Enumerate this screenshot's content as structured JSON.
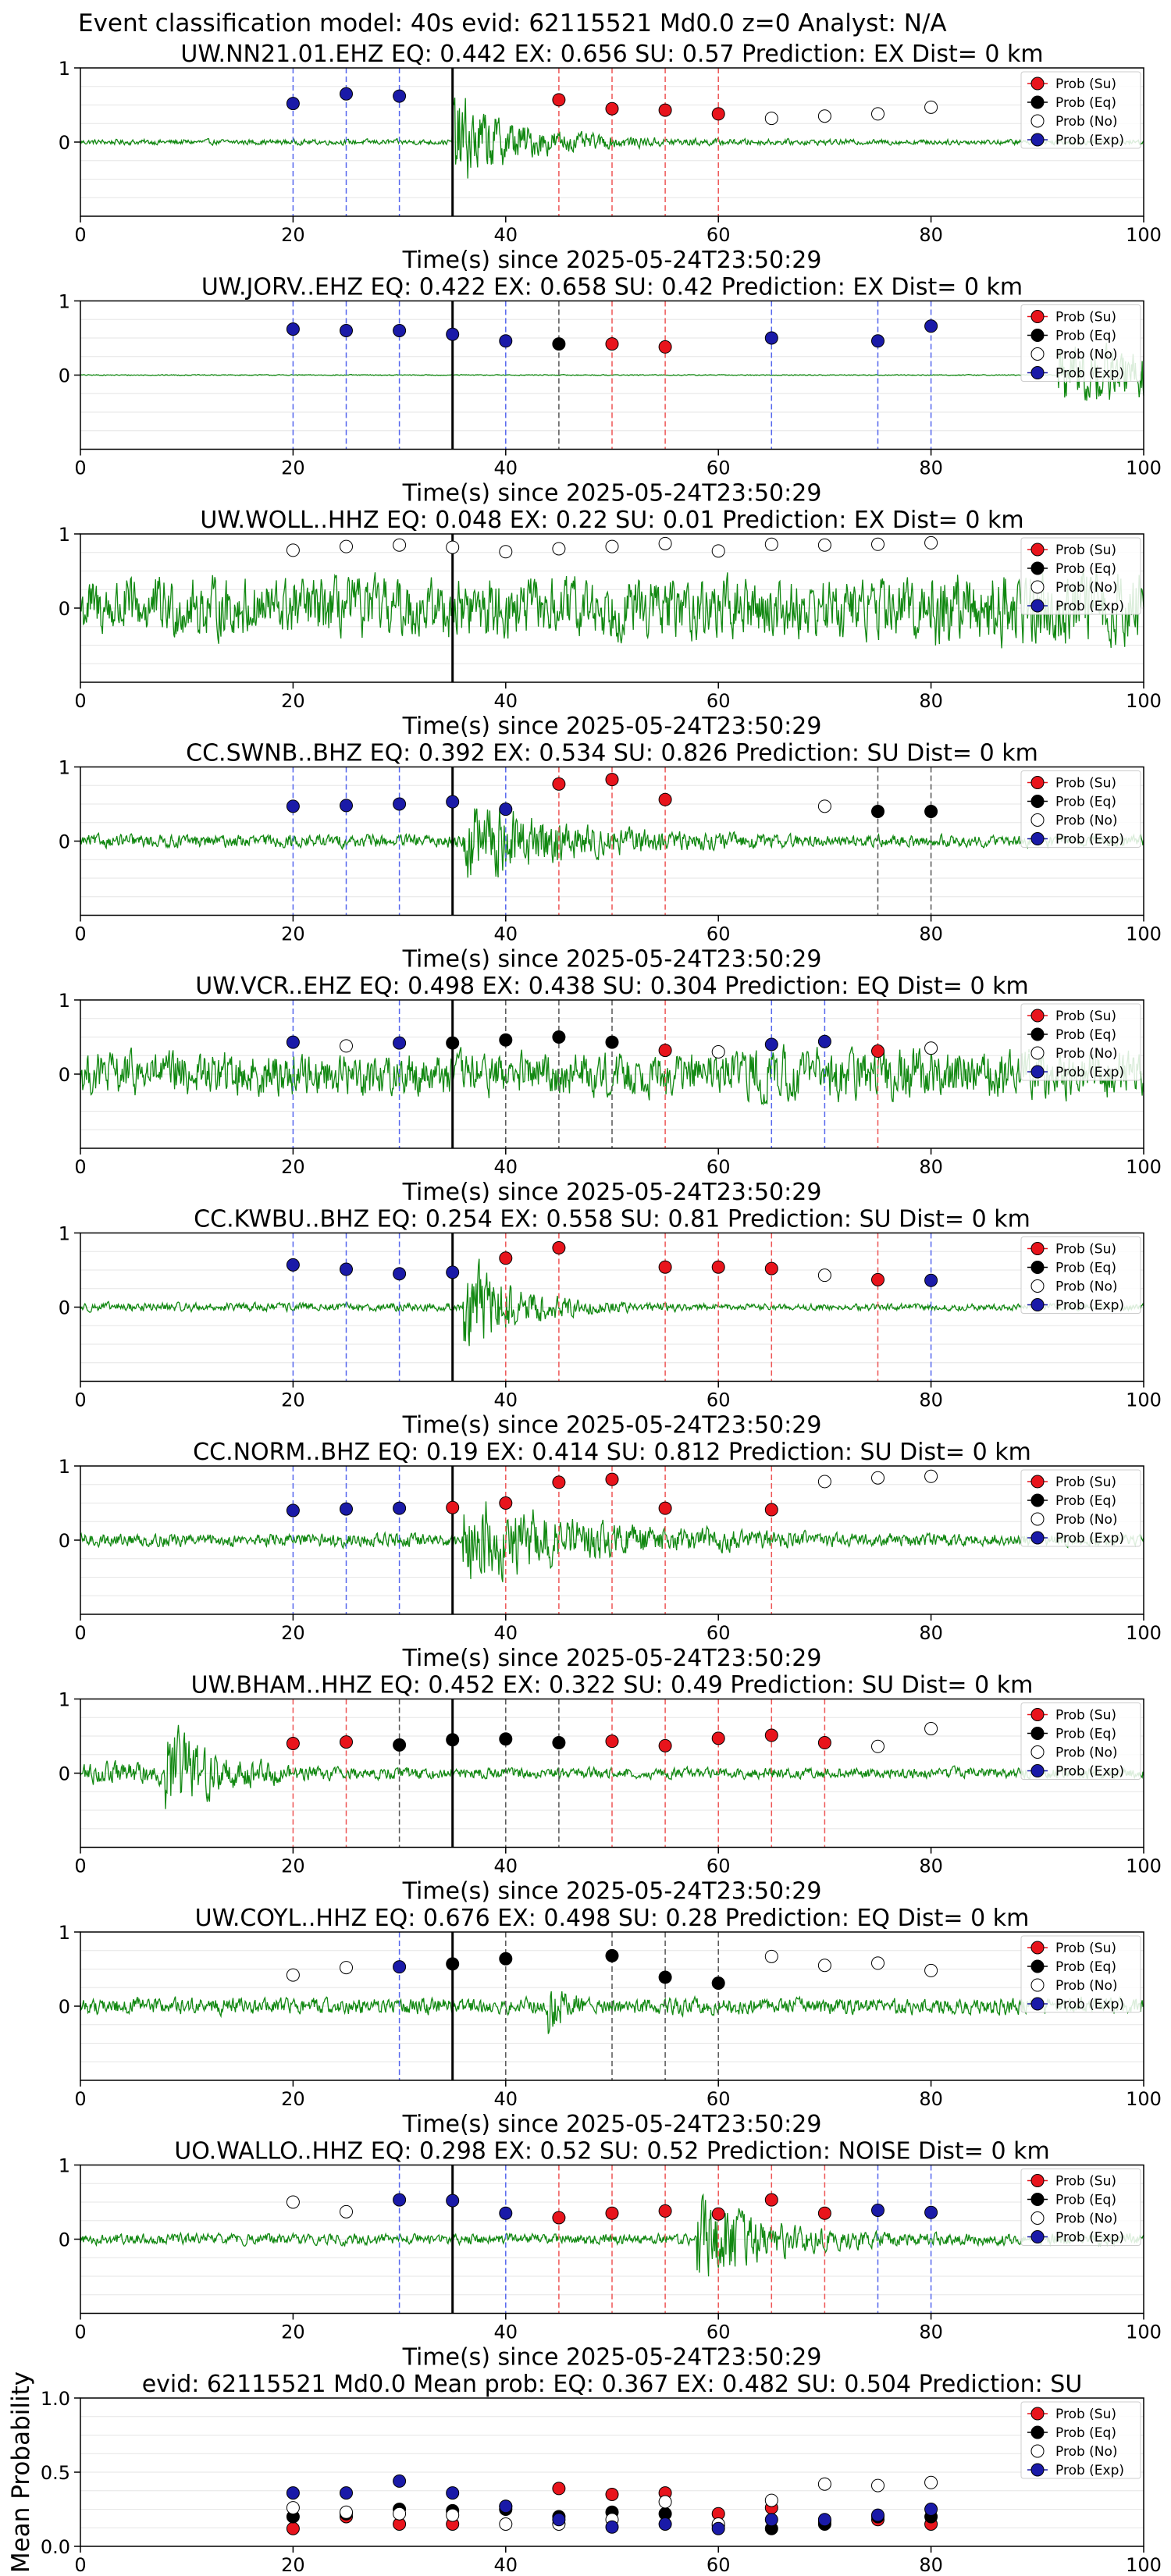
{
  "figure": {
    "suptitle": "Event classification model: 40s evid: 62115521 Md0.0 z=0 Analyst: N/A",
    "xlabel": "Time(s) since 2025-05-24T23:50:29",
    "mean_ylabel": "Mean Probability",
    "colors": {
      "su": "#e8141c",
      "eq": "#000000",
      "no": "#ffffff",
      "exp": "#1a1aa8",
      "waveform": "#118811",
      "grid": "#e6e6e6",
      "vline_su": "#ee5555",
      "vline_eq": "#555555",
      "vline_exp": "#5566ee"
    },
    "legend": [
      "Prob (Su)",
      "Prob (Eq)",
      "Prob (No)",
      "Prob (Exp)"
    ],
    "legend_position": "upper right"
  },
  "chart_data": [
    {
      "type": "scatter",
      "title": "UW.NN21.01.EHZ   EQ: 0.442  EX: 0.656  SU: 0.57   Prediction: EX    Dist= 0 km",
      "xlabel": "Time(s) since 2025-05-24T23:50:29",
      "xlim": [
        0,
        100
      ],
      "ylim": [
        -1,
        1
      ],
      "grid": true,
      "x_ticks": [
        0,
        20,
        40,
        60,
        80,
        100
      ],
      "y_ticks": [
        0,
        1
      ],
      "arrival_line": 35,
      "waveform": {
        "pre": 0.05,
        "burst_start": 35,
        "burst_amp": 0.95,
        "burst_decay": 6,
        "tail": 0.05
      },
      "points": [
        {
          "x": 20,
          "y": 0.52,
          "c": "exp"
        },
        {
          "x": 25,
          "y": 0.65,
          "c": "exp"
        },
        {
          "x": 30,
          "y": 0.62,
          "c": "exp"
        },
        {
          "x": 45,
          "y": 0.57,
          "c": "su"
        },
        {
          "x": 50,
          "y": 0.45,
          "c": "su"
        },
        {
          "x": 55,
          "y": 0.43,
          "c": "su"
        },
        {
          "x": 60,
          "y": 0.38,
          "c": "su"
        },
        {
          "x": 65,
          "y": 0.32,
          "c": "no"
        },
        {
          "x": 70,
          "y": 0.35,
          "c": "no"
        },
        {
          "x": 75,
          "y": 0.38,
          "c": "no"
        },
        {
          "x": 80,
          "y": 0.47,
          "c": "no"
        }
      ]
    },
    {
      "type": "scatter",
      "title": "UW.JORV..EHZ   EQ: 0.422  EX: 0.658  SU: 0.42   Prediction: EX    Dist= 0 km",
      "xlabel": "Time(s) since 2025-05-24T23:50:29",
      "xlim": [
        0,
        100
      ],
      "ylim": [
        -1,
        1
      ],
      "grid": true,
      "x_ticks": [
        0,
        20,
        40,
        60,
        80,
        100
      ],
      "y_ticks": [
        0,
        1
      ],
      "arrival_line": 35,
      "waveform": {
        "pre": 0.01,
        "burst_start": 92,
        "burst_amp": 0.6,
        "burst_decay": 30,
        "tail": 0.01
      },
      "points": [
        {
          "x": 20,
          "y": 0.62,
          "c": "exp"
        },
        {
          "x": 25,
          "y": 0.6,
          "c": "exp"
        },
        {
          "x": 30,
          "y": 0.6,
          "c": "exp"
        },
        {
          "x": 35,
          "y": 0.55,
          "c": "exp"
        },
        {
          "x": 40,
          "y": 0.46,
          "c": "exp"
        },
        {
          "x": 45,
          "y": 0.42,
          "c": "eq"
        },
        {
          "x": 50,
          "y": 0.42,
          "c": "su"
        },
        {
          "x": 55,
          "y": 0.38,
          "c": "su"
        },
        {
          "x": 65,
          "y": 0.5,
          "c": "exp"
        },
        {
          "x": 75,
          "y": 0.46,
          "c": "exp"
        },
        {
          "x": 80,
          "y": 0.66,
          "c": "exp"
        }
      ]
    },
    {
      "type": "scatter",
      "title": "UW.WOLL..HHZ   EQ: 0.048  EX: 0.22  SU: 0.01   Prediction: EX    Dist= 0 km",
      "xlabel": "Time(s) since 2025-05-24T23:50:29",
      "xlim": [
        0,
        100
      ],
      "ylim": [
        -1,
        1
      ],
      "grid": true,
      "x_ticks": [
        0,
        20,
        40,
        60,
        80,
        100
      ],
      "y_ticks": [
        0,
        1
      ],
      "arrival_line": 35,
      "waveform": {
        "pre": 0.55,
        "burst_start": 80,
        "burst_amp": 0.75,
        "burst_decay": 40,
        "tail": 0.55
      },
      "points": [
        {
          "x": 20,
          "y": 0.78,
          "c": "no"
        },
        {
          "x": 25,
          "y": 0.83,
          "c": "no"
        },
        {
          "x": 30,
          "y": 0.85,
          "c": "no"
        },
        {
          "x": 35,
          "y": 0.82,
          "c": "no"
        },
        {
          "x": 40,
          "y": 0.76,
          "c": "no"
        },
        {
          "x": 45,
          "y": 0.8,
          "c": "no"
        },
        {
          "x": 50,
          "y": 0.83,
          "c": "no"
        },
        {
          "x": 55,
          "y": 0.87,
          "c": "no"
        },
        {
          "x": 60,
          "y": 0.77,
          "c": "no"
        },
        {
          "x": 65,
          "y": 0.86,
          "c": "no"
        },
        {
          "x": 70,
          "y": 0.85,
          "c": "no"
        },
        {
          "x": 75,
          "y": 0.86,
          "c": "no"
        },
        {
          "x": 80,
          "y": 0.88,
          "c": "no"
        }
      ]
    },
    {
      "type": "scatter",
      "title": "CC.SWNB..BHZ   EQ: 0.392  EX: 0.534  SU: 0.826   Prediction: SU    Dist= 0 km",
      "xlabel": "Time(s) since 2025-05-24T23:50:29",
      "xlim": [
        0,
        100
      ],
      "ylim": [
        -1,
        1
      ],
      "grid": true,
      "x_ticks": [
        0,
        20,
        40,
        60,
        80,
        100
      ],
      "y_ticks": [
        0,
        1
      ],
      "arrival_line": 35,
      "waveform": {
        "pre": 0.12,
        "burst_start": 36,
        "burst_amp": 0.9,
        "burst_decay": 9,
        "tail": 0.1
      },
      "points": [
        {
          "x": 20,
          "y": 0.47,
          "c": "exp"
        },
        {
          "x": 25,
          "y": 0.48,
          "c": "exp"
        },
        {
          "x": 30,
          "y": 0.5,
          "c": "exp"
        },
        {
          "x": 35,
          "y": 0.53,
          "c": "exp"
        },
        {
          "x": 40,
          "y": 0.43,
          "c": "exp"
        },
        {
          "x": 45,
          "y": 0.77,
          "c": "su"
        },
        {
          "x": 50,
          "y": 0.83,
          "c": "su"
        },
        {
          "x": 55,
          "y": 0.56,
          "c": "su"
        },
        {
          "x": 70,
          "y": 0.47,
          "c": "no"
        },
        {
          "x": 75,
          "y": 0.4,
          "c": "eq"
        },
        {
          "x": 80,
          "y": 0.4,
          "c": "eq"
        }
      ]
    },
    {
      "type": "scatter",
      "title": "UW.VCR..EHZ   EQ: 0.498  EX: 0.438  SU: 0.304   Prediction: EQ    Dist= 0 km",
      "xlabel": "Time(s) since 2025-05-24T23:50:29",
      "xlim": [
        0,
        100
      ],
      "ylim": [
        -1,
        1
      ],
      "grid": true,
      "x_ticks": [
        0,
        20,
        40,
        60,
        80,
        100
      ],
      "y_ticks": [
        0,
        1
      ],
      "arrival_line": 35,
      "waveform": {
        "pre": 0.4,
        "burst_start": 60,
        "burst_amp": 0.5,
        "burst_decay": 40,
        "tail": 0.4
      },
      "points": [
        {
          "x": 20,
          "y": 0.43,
          "c": "exp"
        },
        {
          "x": 25,
          "y": 0.38,
          "c": "no"
        },
        {
          "x": 30,
          "y": 0.42,
          "c": "exp"
        },
        {
          "x": 35,
          "y": 0.42,
          "c": "eq"
        },
        {
          "x": 40,
          "y": 0.46,
          "c": "eq"
        },
        {
          "x": 45,
          "y": 0.5,
          "c": "eq"
        },
        {
          "x": 50,
          "y": 0.43,
          "c": "eq"
        },
        {
          "x": 55,
          "y": 0.32,
          "c": "su"
        },
        {
          "x": 60,
          "y": 0.3,
          "c": "no"
        },
        {
          "x": 65,
          "y": 0.4,
          "c": "exp"
        },
        {
          "x": 70,
          "y": 0.44,
          "c": "exp"
        },
        {
          "x": 75,
          "y": 0.31,
          "c": "su"
        },
        {
          "x": 80,
          "y": 0.35,
          "c": "no"
        }
      ]
    },
    {
      "type": "scatter",
      "title": "CC.KWBU..BHZ   EQ: 0.254  EX: 0.558  SU: 0.81   Prediction: SU    Dist= 0 km",
      "xlabel": "Time(s) since 2025-05-24T23:50:29",
      "xlim": [
        0,
        100
      ],
      "ylim": [
        -1,
        1
      ],
      "grid": true,
      "x_ticks": [
        0,
        20,
        40,
        60,
        80,
        100
      ],
      "y_ticks": [
        0,
        1
      ],
      "arrival_line": 35,
      "waveform": {
        "pre": 0.08,
        "burst_start": 36,
        "burst_amp": 0.95,
        "burst_decay": 5,
        "tail": 0.06
      },
      "points": [
        {
          "x": 20,
          "y": 0.57,
          "c": "exp"
        },
        {
          "x": 25,
          "y": 0.51,
          "c": "exp"
        },
        {
          "x": 30,
          "y": 0.45,
          "c": "exp"
        },
        {
          "x": 35,
          "y": 0.47,
          "c": "exp"
        },
        {
          "x": 40,
          "y": 0.66,
          "c": "su"
        },
        {
          "x": 45,
          "y": 0.8,
          "c": "su"
        },
        {
          "x": 55,
          "y": 0.54,
          "c": "su"
        },
        {
          "x": 60,
          "y": 0.54,
          "c": "su"
        },
        {
          "x": 65,
          "y": 0.52,
          "c": "su"
        },
        {
          "x": 70,
          "y": 0.43,
          "c": "no"
        },
        {
          "x": 75,
          "y": 0.37,
          "c": "su"
        },
        {
          "x": 80,
          "y": 0.36,
          "c": "exp"
        }
      ]
    },
    {
      "type": "scatter",
      "title": "CC.NORM..BHZ   EQ: 0.19  EX: 0.414  SU: 0.812   Prediction: SU    Dist= 0 km",
      "xlabel": "Time(s) since 2025-05-24T23:50:29",
      "xlim": [
        0,
        100
      ],
      "ylim": [
        -1,
        1
      ],
      "grid": true,
      "x_ticks": [
        0,
        20,
        40,
        60,
        80,
        100
      ],
      "y_ticks": [
        0,
        1
      ],
      "arrival_line": 35,
      "waveform": {
        "pre": 0.12,
        "burst_start": 36,
        "burst_amp": 0.9,
        "burst_decay": 12,
        "tail": 0.1
      },
      "points": [
        {
          "x": 20,
          "y": 0.4,
          "c": "exp"
        },
        {
          "x": 25,
          "y": 0.42,
          "c": "exp"
        },
        {
          "x": 30,
          "y": 0.43,
          "c": "exp"
        },
        {
          "x": 35,
          "y": 0.44,
          "c": "su"
        },
        {
          "x": 40,
          "y": 0.5,
          "c": "su"
        },
        {
          "x": 45,
          "y": 0.78,
          "c": "su"
        },
        {
          "x": 50,
          "y": 0.82,
          "c": "su"
        },
        {
          "x": 55,
          "y": 0.43,
          "c": "su"
        },
        {
          "x": 65,
          "y": 0.41,
          "c": "su"
        },
        {
          "x": 70,
          "y": 0.79,
          "c": "no"
        },
        {
          "x": 75,
          "y": 0.84,
          "c": "no"
        },
        {
          "x": 80,
          "y": 0.86,
          "c": "no"
        }
      ]
    },
    {
      "type": "scatter",
      "title": "UW.BHAM..HHZ   EQ: 0.452  EX: 0.322  SU: 0.49   Prediction: SU    Dist= 0 km",
      "xlabel": "Time(s) since 2025-05-24T23:50:29",
      "xlim": [
        0,
        100
      ],
      "ylim": [
        -1,
        1
      ],
      "grid": true,
      "x_ticks": [
        0,
        20,
        40,
        60,
        80,
        100
      ],
      "y_ticks": [
        0,
        1
      ],
      "arrival_line": 35,
      "waveform": {
        "pre": 0.2,
        "burst_start": 8,
        "burst_amp": 0.95,
        "burst_decay": 5,
        "tail": 0.1
      },
      "points": [
        {
          "x": 20,
          "y": 0.4,
          "c": "su"
        },
        {
          "x": 25,
          "y": 0.42,
          "c": "su"
        },
        {
          "x": 30,
          "y": 0.38,
          "c": "eq"
        },
        {
          "x": 35,
          "y": 0.45,
          "c": "eq"
        },
        {
          "x": 40,
          "y": 0.46,
          "c": "eq"
        },
        {
          "x": 45,
          "y": 0.41,
          "c": "eq"
        },
        {
          "x": 50,
          "y": 0.43,
          "c": "su"
        },
        {
          "x": 55,
          "y": 0.37,
          "c": "su"
        },
        {
          "x": 60,
          "y": 0.47,
          "c": "su"
        },
        {
          "x": 65,
          "y": 0.51,
          "c": "su"
        },
        {
          "x": 70,
          "y": 0.41,
          "c": "su"
        },
        {
          "x": 75,
          "y": 0.36,
          "c": "no"
        },
        {
          "x": 80,
          "y": 0.6,
          "c": "no"
        }
      ]
    },
    {
      "type": "scatter",
      "title": "UW.COYL..HHZ   EQ: 0.676  EX: 0.498  SU: 0.28   Prediction: EQ    Dist= 0 km",
      "xlabel": "Time(s) since 2025-05-24T23:50:29",
      "xlim": [
        0,
        100
      ],
      "ylim": [
        -1,
        1
      ],
      "grid": true,
      "x_ticks": [
        0,
        20,
        40,
        60,
        80,
        100
      ],
      "y_ticks": [
        0,
        1
      ],
      "arrival_line": 35,
      "waveform": {
        "pre": 0.15,
        "burst_start": 44,
        "burst_amp": 0.55,
        "burst_decay": 1.5,
        "tail": 0.15
      },
      "points": [
        {
          "x": 20,
          "y": 0.42,
          "c": "no"
        },
        {
          "x": 25,
          "y": 0.52,
          "c": "no"
        },
        {
          "x": 30,
          "y": 0.53,
          "c": "exp"
        },
        {
          "x": 35,
          "y": 0.57,
          "c": "eq"
        },
        {
          "x": 40,
          "y": 0.64,
          "c": "eq"
        },
        {
          "x": 50,
          "y": 0.68,
          "c": "eq"
        },
        {
          "x": 55,
          "y": 0.39,
          "c": "eq"
        },
        {
          "x": 60,
          "y": 0.31,
          "c": "eq"
        },
        {
          "x": 65,
          "y": 0.67,
          "c": "no"
        },
        {
          "x": 70,
          "y": 0.55,
          "c": "no"
        },
        {
          "x": 75,
          "y": 0.58,
          "c": "no"
        },
        {
          "x": 80,
          "y": 0.48,
          "c": "no"
        }
      ]
    },
    {
      "type": "scatter",
      "title": "UO.WALLO..HHZ   EQ: 0.298  EX: 0.52  SU: 0.52   Prediction: NOISE    Dist= 0 km",
      "xlabel": "Time(s) since 2025-05-24T23:50:29",
      "xlim": [
        0,
        100
      ],
      "ylim": [
        -1,
        1
      ],
      "grid": true,
      "x_ticks": [
        0,
        20,
        40,
        60,
        80,
        100
      ],
      "y_ticks": [
        0,
        1
      ],
      "arrival_line": 35,
      "waveform": {
        "pre": 0.1,
        "burst_start": 58,
        "burst_amp": 0.95,
        "burst_decay": 6,
        "tail": 0.1
      },
      "points": [
        {
          "x": 20,
          "y": 0.5,
          "c": "no"
        },
        {
          "x": 25,
          "y": 0.37,
          "c": "no"
        },
        {
          "x": 30,
          "y": 0.53,
          "c": "exp"
        },
        {
          "x": 35,
          "y": 0.52,
          "c": "exp"
        },
        {
          "x": 40,
          "y": 0.35,
          "c": "exp"
        },
        {
          "x": 45,
          "y": 0.29,
          "c": "su"
        },
        {
          "x": 50,
          "y": 0.35,
          "c": "su"
        },
        {
          "x": 55,
          "y": 0.38,
          "c": "su"
        },
        {
          "x": 60,
          "y": 0.34,
          "c": "su"
        },
        {
          "x": 65,
          "y": 0.53,
          "c": "su"
        },
        {
          "x": 70,
          "y": 0.35,
          "c": "su"
        },
        {
          "x": 75,
          "y": 0.39,
          "c": "exp"
        },
        {
          "x": 80,
          "y": 0.36,
          "c": "exp"
        }
      ]
    },
    {
      "type": "scatter",
      "title": "evid: 62115521  Md0.0   Mean prob:   EQ: 0.367  EX: 0.482  SU: 0.504   Prediction: SU",
      "xlabel": "",
      "ylabel": "Mean Probability",
      "xlim": [
        0,
        100
      ],
      "ylim": [
        0,
        1
      ],
      "grid": true,
      "x_ticks": [
        0,
        20,
        40,
        60,
        80,
        100
      ],
      "y_ticks": [
        0.0,
        0.5,
        1.0
      ],
      "y_tick_labels": [
        "0.0",
        "0.5",
        "1.0"
      ],
      "series": [
        {
          "name": "Prob (Su)",
          "c": "su",
          "x": [
            20,
            25,
            30,
            35,
            40,
            45,
            50,
            55,
            60,
            65,
            70,
            75,
            80
          ],
          "y": [
            0.12,
            0.2,
            0.15,
            0.15,
            0.27,
            0.39,
            0.35,
            0.36,
            0.22,
            0.26,
            0.17,
            0.18,
            0.15
          ]
        },
        {
          "name": "Prob (Eq)",
          "c": "eq",
          "x": [
            20,
            25,
            30,
            35,
            40,
            45,
            50,
            55,
            60,
            65,
            70,
            75,
            80
          ],
          "y": [
            0.2,
            0.22,
            0.25,
            0.24,
            0.25,
            0.2,
            0.23,
            0.22,
            0.14,
            0.12,
            0.15,
            0.2,
            0.2
          ]
        },
        {
          "name": "Prob (No)",
          "c": "no",
          "x": [
            20,
            25,
            30,
            35,
            40,
            45,
            50,
            55,
            60,
            65,
            70,
            75,
            80
          ],
          "y": [
            0.26,
            0.23,
            0.22,
            0.21,
            0.15,
            0.15,
            0.18,
            0.3,
            0.15,
            0.31,
            0.42,
            0.41,
            0.43
          ]
        },
        {
          "name": "Prob (Exp)",
          "c": "exp",
          "x": [
            20,
            25,
            30,
            35,
            40,
            45,
            50,
            55,
            60,
            65,
            70,
            75,
            80
          ],
          "y": [
            0.36,
            0.36,
            0.44,
            0.36,
            0.27,
            0.18,
            0.13,
            0.15,
            0.12,
            0.18,
            0.18,
            0.21,
            0.25
          ]
        }
      ]
    }
  ]
}
